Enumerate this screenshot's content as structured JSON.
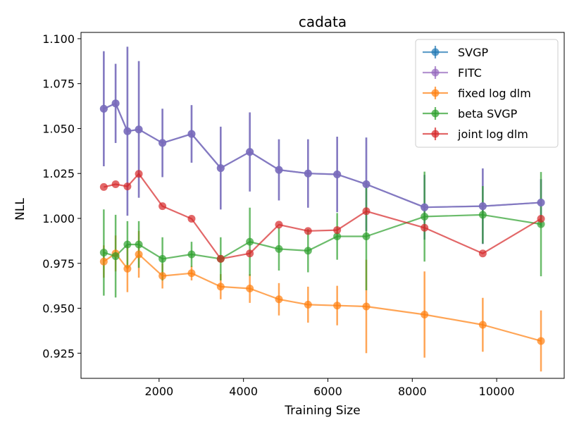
{
  "colors": {
    "SVGP": "#1f77b4",
    "FITC": "#9467bd",
    "fixed log dlm": "#ff7f0e",
    "beta SVGP": "#2ca02c",
    "joint log dlm": "#d62728"
  },
  "chart_data": {
    "type": "line",
    "title": "cadata",
    "xlabel": "Training Size",
    "ylabel": "NLL",
    "xlim": [
      150,
      11600
    ],
    "ylim": [
      0.911,
      1.1035
    ],
    "xticks": [
      2000,
      4000,
      6000,
      8000,
      10000
    ],
    "xtick_labels": [
      "2000",
      "4000",
      "6000",
      "8000",
      "10000"
    ],
    "yticks": [
      0.925,
      0.95,
      0.975,
      1.0,
      1.025,
      1.05,
      1.075,
      1.1
    ],
    "ytick_labels": [
      "0.925",
      "0.950",
      "0.975",
      "1.000",
      "1.025",
      "1.050",
      "1.075",
      "1.100"
    ],
    "x": [
      690,
      970,
      1250,
      1520,
      2080,
      2770,
      3460,
      4150,
      4840,
      5530,
      6220,
      6910,
      8290,
      9670,
      11050
    ],
    "legend_position": "top-right",
    "series": [
      {
        "name": "SVGP",
        "values": [
          1.061,
          1.064,
          1.0485,
          1.0495,
          1.042,
          1.047,
          1.028,
          1.037,
          1.027,
          1.025,
          1.0245,
          1.019,
          1.0062,
          1.0068,
          1.0088
        ],
        "errors": [
          0.032,
          0.022,
          0.047,
          0.038,
          0.019,
          0.016,
          0.023,
          0.022,
          0.017,
          0.019,
          0.021,
          0.026,
          0.018,
          0.021,
          0.013
        ]
      },
      {
        "name": "FITC",
        "values": [
          1.061,
          1.064,
          1.0485,
          1.0495,
          1.042,
          1.047,
          1.028,
          1.037,
          1.027,
          1.025,
          1.0245,
          1.019,
          1.0062,
          1.0068,
          1.0088
        ],
        "errors": [
          0.032,
          0.022,
          0.047,
          0.038,
          0.019,
          0.016,
          0.023,
          0.022,
          0.017,
          0.019,
          0.021,
          0.026,
          0.018,
          0.021,
          0.013
        ]
      },
      {
        "name": "fixed log dlm",
        "values": [
          0.976,
          0.9805,
          0.972,
          0.98,
          0.968,
          0.9695,
          0.962,
          0.961,
          0.955,
          0.952,
          0.9515,
          0.951,
          0.9465,
          0.9408,
          0.9318
        ],
        "errors": [
          0.009,
          0.01,
          0.013,
          0.013,
          0.007,
          0.004,
          0.007,
          0.008,
          0.009,
          0.01,
          0.011,
          0.026,
          0.024,
          0.015,
          0.017
        ]
      },
      {
        "name": "beta SVGP",
        "values": [
          0.981,
          0.979,
          0.9855,
          0.9855,
          0.9775,
          0.98,
          0.9775,
          0.987,
          0.983,
          0.982,
          0.99,
          0.99,
          1.001,
          1.002,
          0.9968
        ],
        "errors": [
          0.024,
          0.023,
          0.013,
          0.013,
          0.012,
          0.007,
          0.012,
          0.019,
          0.012,
          0.012,
          0.013,
          0.03,
          0.025,
          0.016,
          0.029
        ]
      },
      {
        "name": "joint log dlm",
        "values": [
          1.0175,
          1.019,
          1.0178,
          1.0248,
          1.0068,
          0.9998,
          0.9775,
          0.9805,
          0.9965,
          0.993,
          0.9935,
          1.004,
          0.9948,
          0.9805,
          0.9998
        ]
      }
    ]
  }
}
